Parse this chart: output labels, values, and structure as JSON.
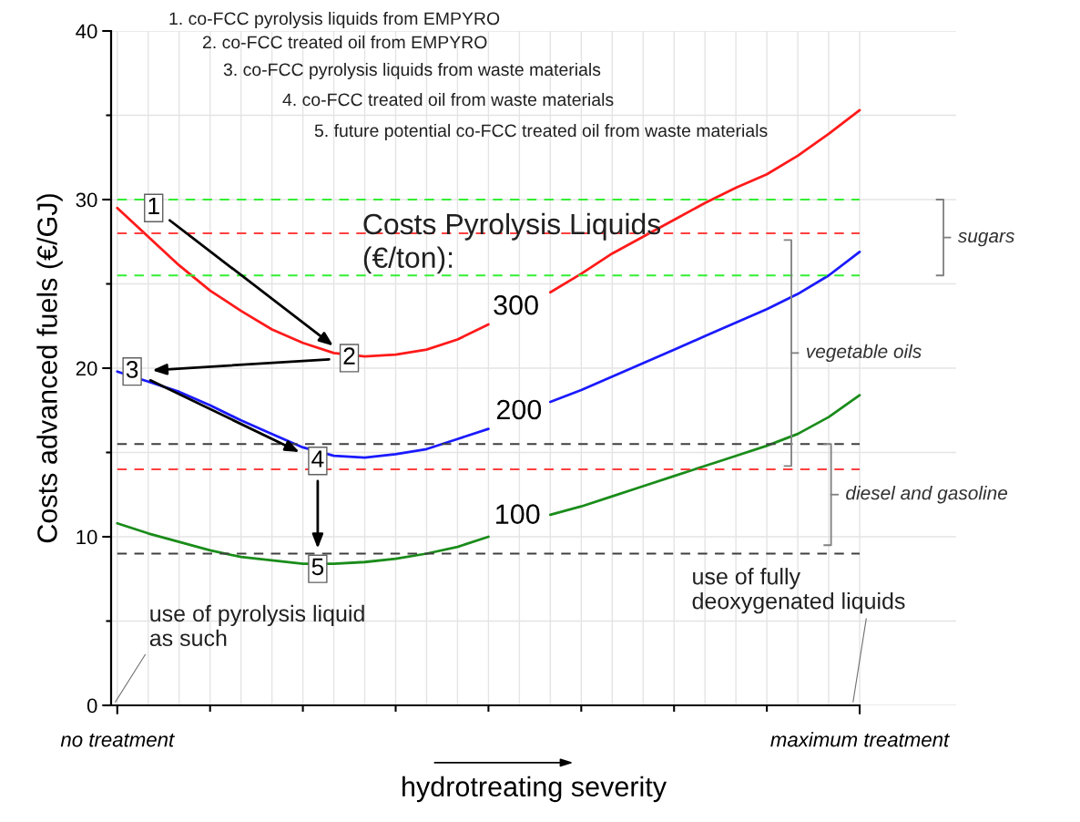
{
  "chart_data": {
    "type": "line",
    "xlabel": "hydrotreating severity",
    "ylabel": "Costs advanced fuels (€/GJ)",
    "categories": [
      "no treatment",
      null,
      null,
      null,
      null,
      null,
      null,
      null,
      null,
      null,
      null,
      null,
      null,
      null,
      null,
      null,
      null,
      null,
      null,
      null,
      null,
      null,
      null,
      null,
      "maximum treatment"
    ],
    "ylim": [
      0,
      40
    ],
    "yticks": [
      0,
      {
        "value": 5,
        "label": null
      },
      10,
      {
        "value": 15,
        "label": null
      },
      20,
      {
        "value": 25,
        "label": null
      },
      30,
      {
        "value": 35,
        "label": null
      },
      40
    ],
    "grid": true,
    "legend": false,
    "marker": "none",
    "line_style": "solid",
    "series": [
      {
        "color": "#ff1a1a",
        "values": [
          29.5,
          27.8,
          26.1,
          24.6,
          23.4,
          22.3,
          21.5,
          20.9,
          20.7,
          20.8,
          21.1,
          21.7,
          22.6,
          null,
          24.5,
          25.6,
          26.8,
          27.8,
          28.8,
          29.8,
          30.7,
          31.5,
          32.6,
          33.9,
          35.3
        ]
      },
      {
        "color": "#1a1aff",
        "values": [
          19.8,
          19.2,
          18.6,
          17.8,
          16.9,
          16.1,
          15.3,
          14.8,
          14.7,
          14.9,
          15.2,
          15.8,
          16.4,
          null,
          18.0,
          18.7,
          19.5,
          20.3,
          21.1,
          21.9,
          22.7,
          23.5,
          24.4,
          25.5,
          26.9
        ]
      },
      {
        "color": "#1a8c1a",
        "values": [
          10.8,
          10.2,
          9.7,
          9.2,
          8.8,
          8.6,
          8.4,
          8.4,
          8.5,
          8.7,
          9.0,
          9.4,
          10.0,
          null,
          11.3,
          11.8,
          12.4,
          13.0,
          13.6,
          14.2,
          14.8,
          15.4,
          16.1,
          17.1,
          18.4
        ]
      }
    ],
    "ref_lines": [
      {
        "axis": "y",
        "value": 30,
        "color": "#33ee33",
        "line_style": "dashed"
      },
      {
        "axis": "y",
        "value": 28,
        "color": "#ff4040",
        "line_style": "dashed"
      },
      {
        "axis": "y",
        "value": 25.5,
        "color": "#33ee33",
        "line_style": "dashed"
      },
      {
        "axis": "y",
        "value": 15.5,
        "color": "#404040",
        "line_style": "dashed"
      },
      {
        "axis": "y",
        "value": 14,
        "color": "#ff4040",
        "line_style": "dashed"
      },
      {
        "axis": "y",
        "value": 9,
        "color": "#404040",
        "line_style": "dashed"
      }
    ],
    "annotations": [
      "1. co-FCC pyrolysis liquids from EMPYRO",
      "2. co-FCC treated oil from EMPYRO",
      "3. co-FCC pyrolysis liquids from waste materials",
      "4. co-FCC treated oil from waste materials",
      "5. future potential co-FCC treated oil from waste materials",
      {
        "text": "1",
        "y": 29.5
      },
      {
        "text": "2",
        "y": 20.6
      },
      {
        "text": "3",
        "y": 19.8
      },
      {
        "text": "4",
        "y": 14.5
      },
      {
        "text": "5",
        "y": 8.1
      },
      "Costs Pyrolysis Liquids\n(€/ton):",
      "300",
      "200",
      "100",
      "use of pyrolysis liquid\nas such",
      "use of fully\ndeoxygenated liquids",
      "sugars",
      "vegetable oils",
      "diesel and gasoline"
    ]
  }
}
